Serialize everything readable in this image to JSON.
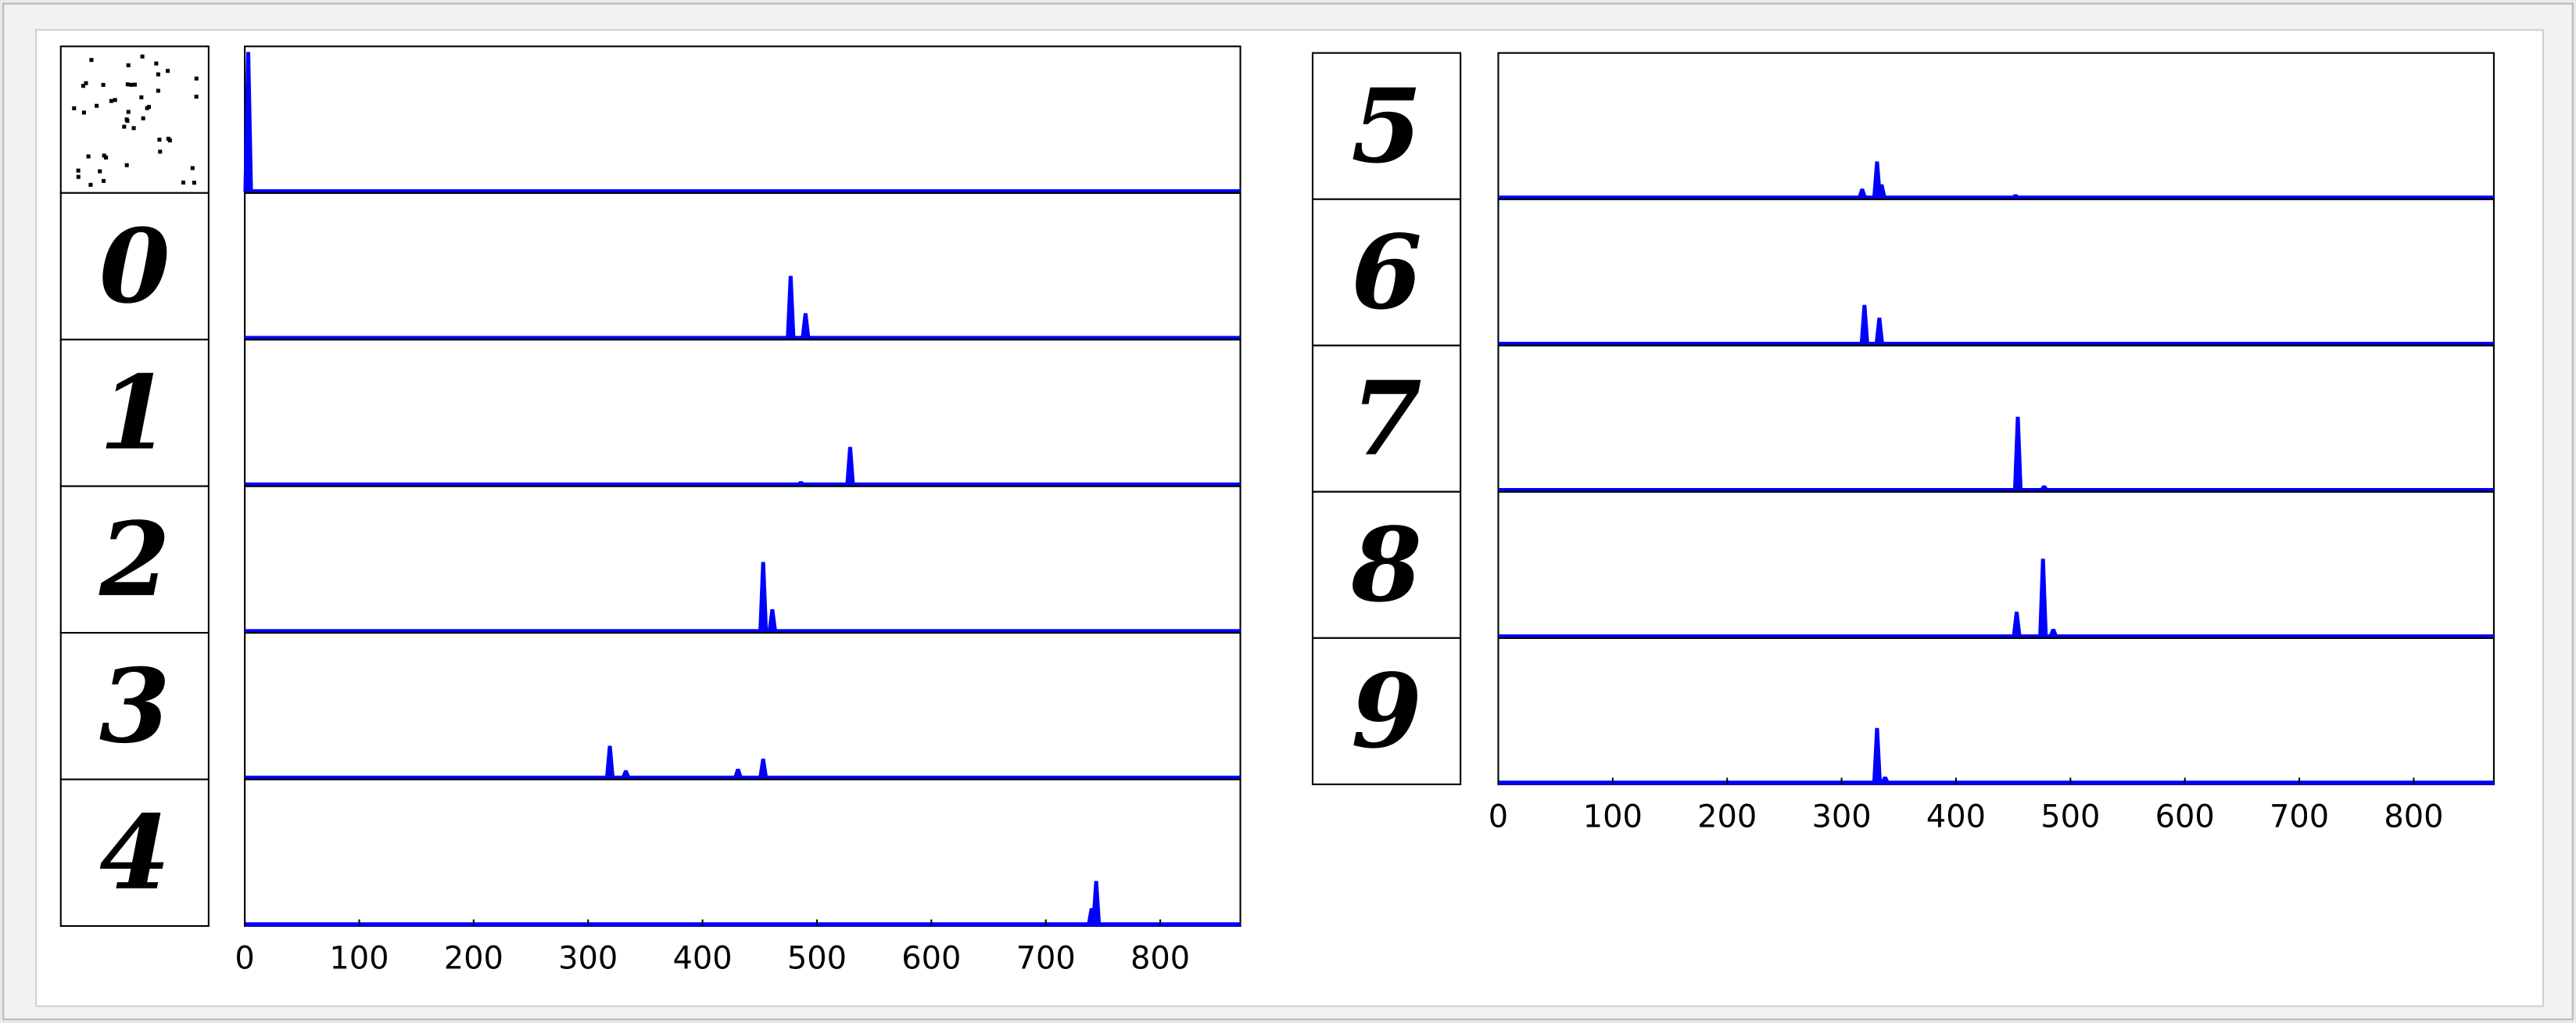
{
  "chart_data": [
    {
      "type": "spike",
      "xlim": [
        0,
        870
      ],
      "xticks": [
        0,
        100,
        200,
        300,
        400,
        500,
        600,
        700,
        800
      ],
      "ylim": [
        0,
        1
      ],
      "color": "#0000ff",
      "panels": [
        {
          "x": [
            3
          ],
          "values": [
            0.98
          ]
        },
        {
          "digit": "0",
          "x": [
            461,
            477,
            490
          ],
          "values": [
            0.02,
            0.44,
            0.18
          ]
        },
        {
          "digit": "1",
          "x": [
            486,
            529,
            562
          ],
          "values": [
            0.03,
            0.27,
            0.01
          ]
        },
        {
          "digit": "2",
          "x": [
            453,
            461
          ],
          "values": [
            0.49,
            0.16
          ]
        },
        {
          "digit": "3",
          "x": [
            319,
            333,
            431,
            453
          ],
          "values": [
            0.23,
            0.06,
            0.07,
            0.14
          ]
        },
        {
          "digit": "4",
          "x": [
            740,
            744
          ],
          "values": [
            0.12,
            0.31
          ]
        }
      ]
    },
    {
      "type": "spike",
      "xlim": [
        0,
        870
      ],
      "xticks": [
        0,
        100,
        200,
        300,
        400,
        500,
        600,
        700,
        800
      ],
      "ylim": [
        0,
        1
      ],
      "color": "#0000ff",
      "panels": [
        {
          "digit": "5",
          "x": [
            318,
            331,
            335,
            452
          ],
          "values": [
            0.07,
            0.26,
            0.1,
            0.03
          ]
        },
        {
          "digit": "6",
          "x": [
            320,
            333
          ],
          "values": [
            0.28,
            0.19
          ]
        },
        {
          "digit": "7",
          "x": [
            454,
            477
          ],
          "values": [
            0.52,
            0.04
          ]
        },
        {
          "digit": "8",
          "x": [
            453,
            476,
            485
          ],
          "values": [
            0.18,
            0.55,
            0.06
          ]
        },
        {
          "digit": "9",
          "x": [
            331,
            338
          ],
          "values": [
            0.39,
            0.05
          ]
        }
      ]
    }
  ]
}
